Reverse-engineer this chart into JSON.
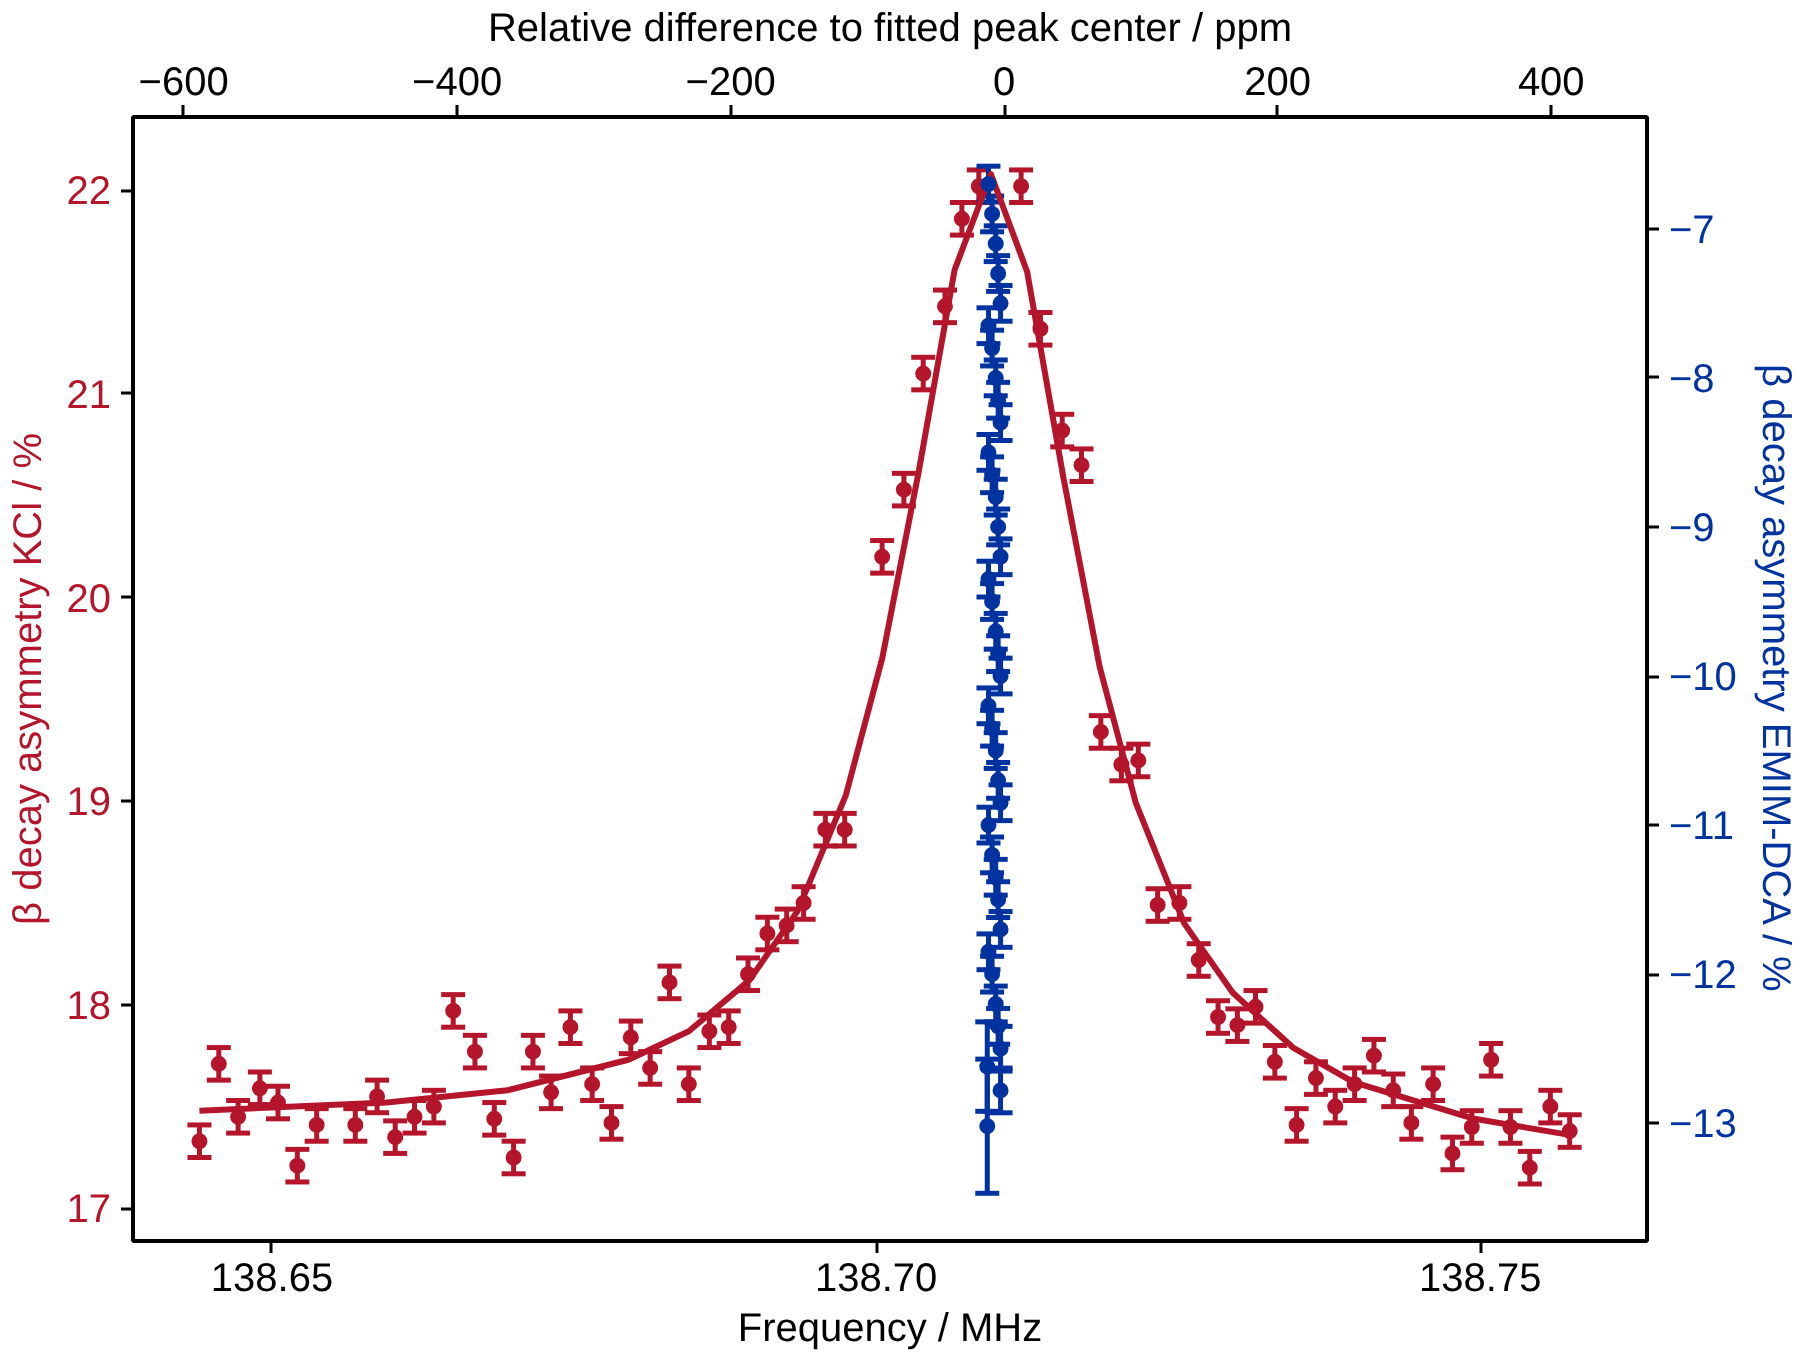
{
  "chart_data": {
    "type": "scatter",
    "xlabel": "Frequency / MHz",
    "ylabel": "β decay asymmetry KCl / %",
    "y2label": "β decay asymmetry EMIM-DCA / %",
    "x2label": "Relative difference to fitted peak center / ppm",
    "xlim": [
      138.6385,
      138.7638
    ],
    "xticks": [
      138.65,
      {
        "value": 138.7,
        "label": "138.70"
      },
      138.75
    ],
    "x2lim": [
      -637,
      470
    ],
    "x2ticks": [
      {
        "value": -600,
        "label": "−600"
      },
      {
        "value": -400,
        "label": "−400"
      },
      {
        "value": -200,
        "label": "−200"
      },
      0,
      200,
      400
    ],
    "ylim": [
      16.84,
      22.36
    ],
    "yticks": [
      17,
      18,
      19,
      20,
      21,
      22
    ],
    "y2lim": [
      -13.79,
      -6.25
    ],
    "y2ticks": [
      {
        "value": -13,
        "label": "−13"
      },
      {
        "value": -12,
        "label": "−12"
      },
      {
        "value": -11,
        "label": "−11"
      },
      {
        "value": -10,
        "label": "−10"
      },
      {
        "value": -9,
        "label": "−9"
      },
      {
        "value": -8,
        "label": "−8"
      },
      {
        "value": -7,
        "label": "−7"
      }
    ],
    "grid": false,
    "marker": "circle",
    "series": [
      {
        "type": "line",
        "color": "#b5152b",
        "line_style": "solid",
        "marker": "none",
        "x": [
          138.644,
          138.6595,
          138.6695,
          138.6795,
          138.6845,
          138.6895,
          138.6935,
          138.6975,
          138.7005,
          138.7035,
          138.7065,
          138.7095,
          138.7125,
          138.7155,
          138.7185,
          138.7215,
          138.7255,
          138.7295,
          138.7345,
          138.7395,
          138.7495,
          138.7575
        ],
        "values": [
          17.48,
          17.52,
          17.58,
          17.73,
          17.87,
          18.12,
          18.46,
          19.03,
          19.7,
          20.61,
          21.61,
          22.08,
          21.6,
          20.59,
          19.66,
          18.99,
          18.4,
          18.06,
          17.79,
          17.62,
          17.44,
          17.36
        ]
      },
      {
        "color": "#b5152b",
        "x": [
          138.644,
          138.6456,
          138.6472,
          138.649,
          138.6505,
          138.6521,
          138.6537,
          138.6569,
          138.6587,
          138.6602,
          138.6618,
          138.6634,
          138.665,
          138.6668,
          138.6684,
          138.67,
          138.6716,
          138.6731,
          138.6747,
          138.6765,
          138.6781,
          138.6797,
          138.6813,
          138.6829,
          138.6845,
          138.6862,
          138.6878,
          138.6894,
          138.691,
          138.6926,
          138.694,
          138.6958,
          138.6974,
          138.7005,
          138.7023,
          138.7039,
          138.7057,
          138.7071,
          138.7085,
          138.712,
          138.7136,
          138.7154,
          138.717,
          138.7186,
          138.7203,
          138.7217,
          138.7233,
          138.7251,
          138.7267,
          138.7283,
          138.7299,
          138.7314,
          138.733,
          138.7348,
          138.7364,
          138.738,
          138.7396,
          138.7412,
          138.7428,
          138.7443,
          138.7461,
          138.7477,
          138.7493,
          138.7509,
          138.7525,
          138.7541,
          138.7558,
          138.7574
        ],
        "values": [
          17.33,
          17.71,
          17.45,
          17.59,
          17.52,
          17.21,
          17.41,
          17.41,
          17.55,
          17.35,
          17.45,
          17.5,
          17.97,
          17.77,
          17.44,
          17.25,
          17.77,
          17.57,
          17.89,
          17.61,
          17.42,
          17.84,
          17.69,
          18.11,
          17.61,
          17.87,
          17.89,
          18.15,
          18.35,
          18.39,
          18.5,
          18.86,
          18.86,
          20.2,
          20.53,
          21.1,
          21.43,
          21.86,
          22.02,
          22.02,
          21.32,
          20.82,
          20.65,
          19.34,
          19.18,
          19.2,
          18.49,
          18.5,
          18.22,
          17.94,
          17.9,
          17.99,
          17.72,
          17.41,
          17.64,
          17.5,
          17.61,
          17.75,
          17.58,
          17.42,
          17.61,
          17.27,
          17.4,
          17.73,
          17.4,
          17.2,
          17.5,
          17.38
        ],
        "errors": [
          0.08,
          0.08,
          0.08,
          0.08,
          0.08,
          0.08,
          0.08,
          0.08,
          0.08,
          0.08,
          0.08,
          0.08,
          0.08,
          0.08,
          0.08,
          0.08,
          0.08,
          0.08,
          0.08,
          0.08,
          0.08,
          0.08,
          0.08,
          0.08,
          0.08,
          0.08,
          0.08,
          0.08,
          0.08,
          0.08,
          0.08,
          0.08,
          0.08,
          0.08,
          0.08,
          0.08,
          0.08,
          0.08,
          0.08,
          0.08,
          0.08,
          0.08,
          0.08,
          0.08,
          0.08,
          0.08,
          0.08,
          0.08,
          0.08,
          0.08,
          0.08,
          0.08,
          0.08,
          0.08,
          0.08,
          0.08,
          0.08,
          0.08,
          0.08,
          0.08,
          0.08,
          0.08,
          0.08,
          0.08,
          0.08,
          0.08,
          0.08,
          0.08
        ]
      },
      {
        "color": "#0033a0",
        "axis": "y2",
        "x": [
          138.7093,
          138.7096,
          138.7099,
          138.7101,
          138.7103,
          138.7093,
          138.7096,
          138.7099,
          138.7101,
          138.7103,
          138.7093,
          138.7096,
          138.7099,
          138.7101,
          138.7103,
          138.7093,
          138.7096,
          138.7099,
          138.7101,
          138.7103,
          138.7093,
          138.7096,
          138.7099,
          138.7101,
          138.7103,
          138.7093,
          138.7096,
          138.7099,
          138.7101,
          138.7103,
          138.7093,
          138.7096,
          138.7099,
          138.7101,
          138.7103,
          138.7092,
          138.7103,
          138.7092
        ],
        "values": [
          -6.7,
          -6.9,
          -7.1,
          -7.3,
          -7.5,
          -7.65,
          -7.8,
          -8.0,
          -8.15,
          -8.3,
          -8.5,
          -8.65,
          -8.8,
          -9.0,
          -9.2,
          -9.35,
          -9.5,
          -9.7,
          -9.85,
          -10.0,
          -10.2,
          -10.35,
          -10.5,
          -10.7,
          -10.85,
          -11.0,
          -11.2,
          -11.35,
          -11.5,
          -11.7,
          -11.85,
          -12.0,
          -12.2,
          -12.35,
          -12.5,
          -12.62,
          -12.78,
          -13.02
        ],
        "errors": [
          0.12,
          0.12,
          0.12,
          0.12,
          0.12,
          0.12,
          0.12,
          0.12,
          0.12,
          0.12,
          0.12,
          0.12,
          0.12,
          0.12,
          0.12,
          0.12,
          0.12,
          0.12,
          0.12,
          0.12,
          0.12,
          0.12,
          0.12,
          0.12,
          0.12,
          0.12,
          0.12,
          0.12,
          0.12,
          0.12,
          0.12,
          0.12,
          0.12,
          0.12,
          0.15,
          0.3,
          0.15,
          0.45
        ]
      }
    ]
  }
}
